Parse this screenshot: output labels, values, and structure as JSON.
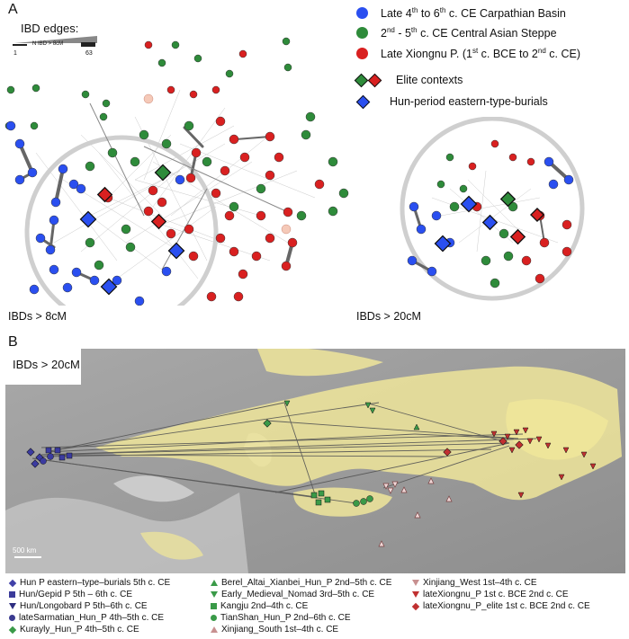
{
  "panel_a": {
    "letter": "A",
    "edges_title": "IBD edges:",
    "edges_min": "1",
    "edges_label": "N IBD > 8cM",
    "edges_max": "63",
    "caption_left": "IBDs > 8cM",
    "caption_right": "IBDs > 20cM"
  },
  "legend": {
    "items": [
      {
        "prefix": "Late 4",
        "sup1": "th",
        "mid": " to 6",
        "sup2": "th",
        "suffix": " c. CE Carpathian Basin",
        "color": "#2a4ff0"
      },
      {
        "prefix": "2",
        "sup1": "nd",
        "mid": " - 5",
        "sup2": "th",
        "suffix": " c. CE Central Asian Steppe",
        "color": "#2e8b3a"
      },
      {
        "prefix": "Late Xiongnu P. (1",
        "sup1": "st",
        "mid": " c. BCE to 2",
        "sup2": "nd",
        "suffix": " c. CE)",
        "color": "#d92020"
      }
    ],
    "elite": "Elite contexts",
    "hun_burials": "Hun-period eastern-type-burials"
  },
  "panel_b": {
    "letter": "B",
    "map_title": "IBDs > 20cM",
    "scale": "500 km"
  },
  "map_legend": [
    {
      "label": "Hun P eastern–type–burials 5th c. CE",
      "shape": "diamond",
      "color": "#4040a8"
    },
    {
      "label": "Hun/Gepid P 5th – 6th c. CE",
      "shape": "square",
      "color": "#3b3b9a"
    },
    {
      "label": "Hun/Longobard P 5th–6th c. CE",
      "shape": "tri-down",
      "color": "#2d2d80"
    },
    {
      "label": "lateSarmatian_Hun_P 4th–5th c. CE",
      "shape": "circle",
      "color": "#3a3a90"
    },
    {
      "label": "Kurayly_Hun_P 4th–5th c. CE",
      "shape": "diamond",
      "color": "#3a9a48"
    },
    {
      "label": "Berel_Altai_Xianbei_Hun_P 2nd–5th c. CE",
      "shape": "tri-up",
      "color": "#3a9a48"
    },
    {
      "label": "Early_Medieval_Nomad 3rd–5th c. CE",
      "shape": "tri-down",
      "color": "#3a9a48"
    },
    {
      "label": "Kangju 2nd–4th c. CE",
      "shape": "square",
      "color": "#3a9a48"
    },
    {
      "label": "TianShan_Hun_P 2nd–6th c. CE",
      "shape": "circle",
      "color": "#3a9a48"
    },
    {
      "label": "Xinjiang_South 1st–4th c. CE",
      "shape": "tri-up-hollow",
      "color": "#c89090"
    },
    {
      "label": "Xinjiang_West 1st–4th c. CE",
      "shape": "tri-down-hollow",
      "color": "#c89090"
    },
    {
      "label": "lateXiongnu_P 1st c. BCE 2nd c. CE",
      "shape": "tri-down",
      "color": "#c03030"
    },
    {
      "label": "lateXiongnu_P_elite 1st c. BCE 2nd c. CE",
      "shape": "diamond",
      "color": "#c03030"
    }
  ]
}
